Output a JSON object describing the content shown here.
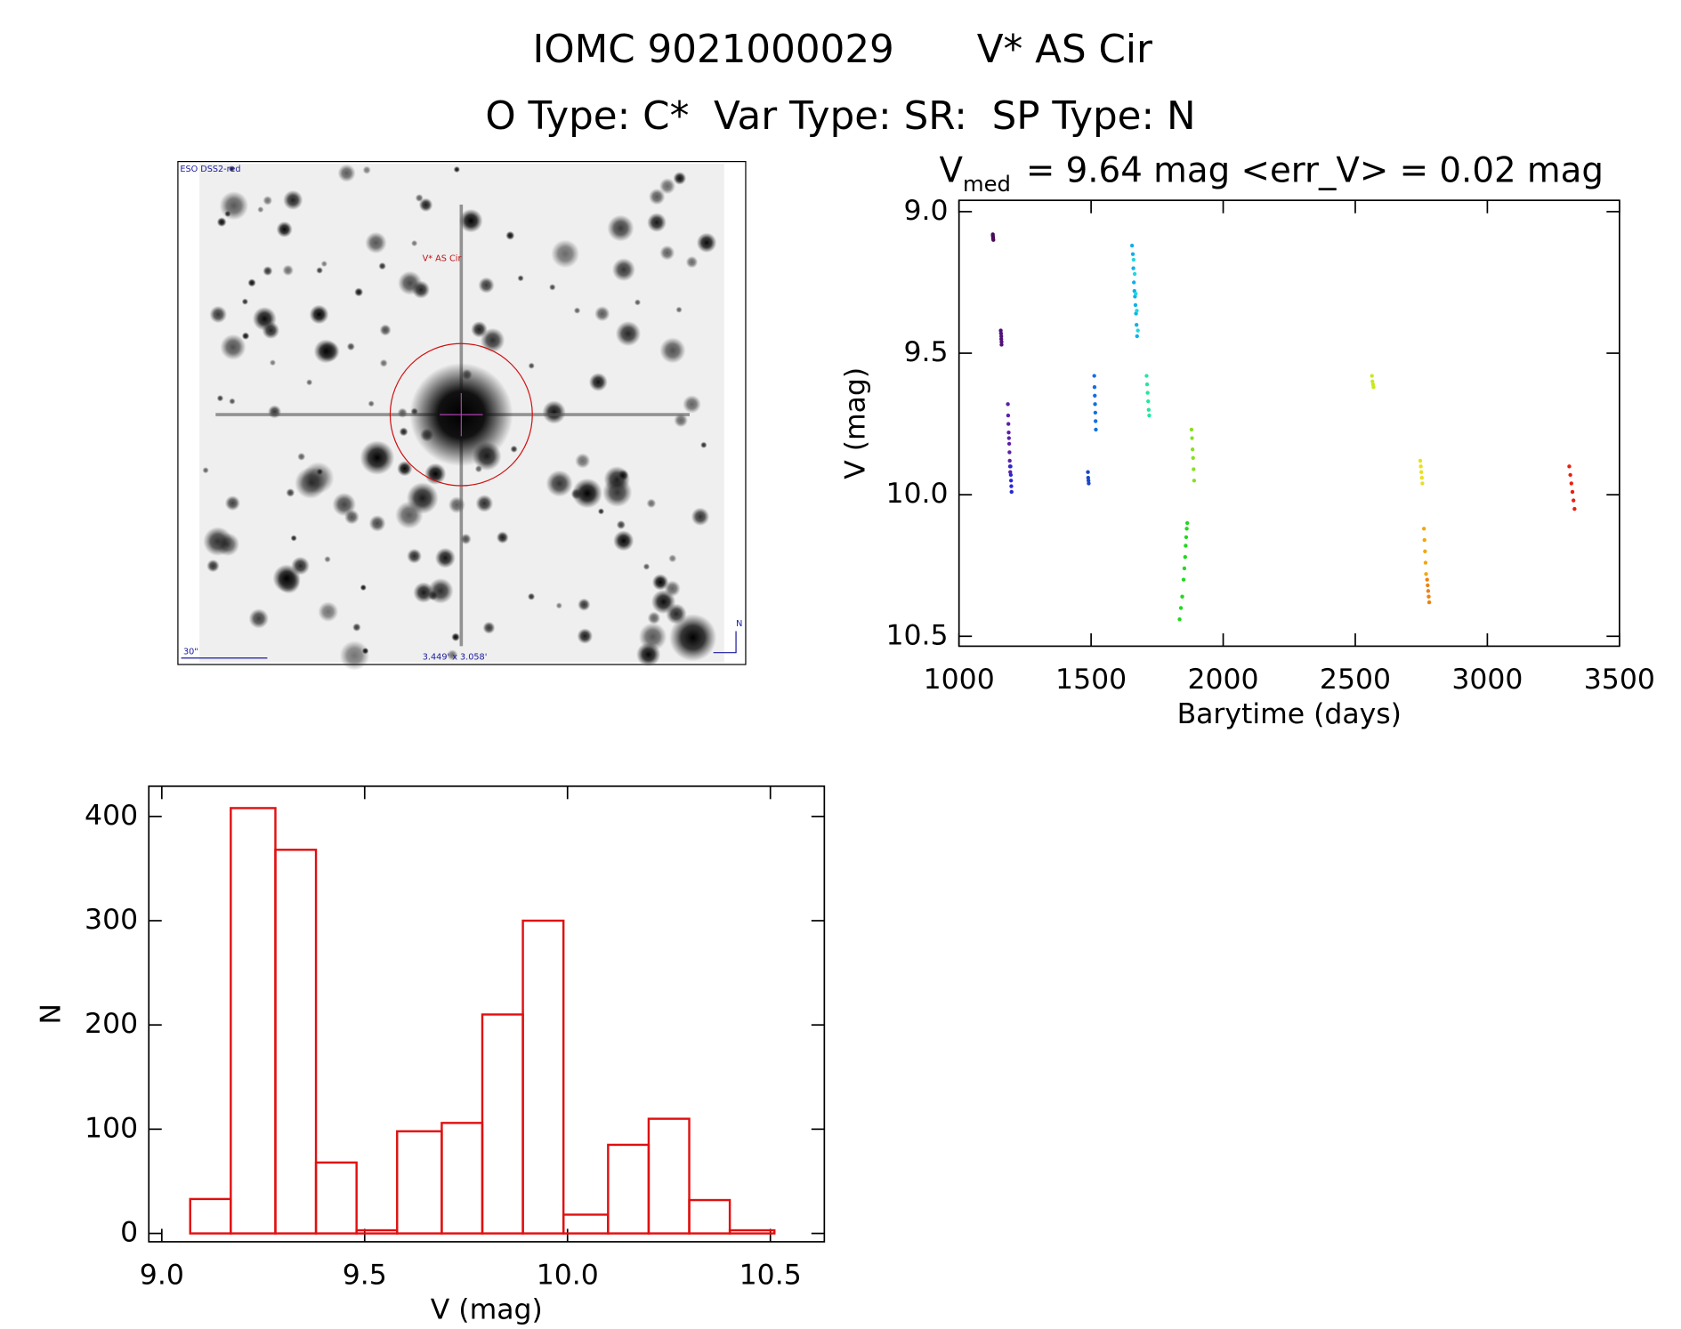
{
  "page_title": "IOMC 9021000029",
  "object_name": "V* AS Cir",
  "type_line": "O Type: C*  Var Type: SR:  SP Type: N",
  "image_panel": {
    "survey": "ESO DSS2-red",
    "target": "V* AS Cir",
    "scale": "30\"",
    "field": "3.449' x 3.058'",
    "north": "N"
  },
  "chart_data": [
    {
      "type": "scatter",
      "title": {
        "main": "V",
        "sub": "med",
        "rest": "= 9.64 mag <err_V> = 0.02 mag"
      },
      "xlabel": "Barytime (days)",
      "ylabel": "V (mag)",
      "xlim": [
        1000,
        3500
      ],
      "xticks": [
        1000,
        1500,
        2000,
        2500,
        3000,
        3500
      ],
      "ylim": [
        8.96,
        10.535
      ],
      "y_inverted": true,
      "yticks": [
        {
          "value": 9,
          "label": "9.0"
        },
        9.5,
        {
          "value": 10,
          "label": "10.0"
        },
        10.5
      ],
      "series": [
        {
          "color": "#4a0a5a",
          "x": [
            1128,
            1128,
            1129,
            1129,
            1130
          ],
          "values": [
            9.08,
            9.085,
            9.09,
            9.095,
            9.1
          ]
        },
        {
          "color": "#50107a",
          "x": [
            1158,
            1159,
            1160,
            1160,
            1161,
            1161
          ],
          "values": [
            9.42,
            9.43,
            9.44,
            9.45,
            9.46,
            9.47
          ]
        },
        {
          "color": "#5a20a8",
          "x": [
            1185,
            1186,
            1187,
            1188,
            1189,
            1190,
            1191,
            1192,
            1193,
            1194
          ],
          "values": [
            9.68,
            9.72,
            9.75,
            9.78,
            9.8,
            9.82,
            9.85,
            9.88,
            9.9,
            9.92
          ]
        },
        {
          "color": "#2828d0",
          "x": [
            1195,
            1196,
            1197,
            1198,
            1199
          ],
          "values": [
            9.9,
            9.93,
            9.95,
            9.97,
            9.99
          ]
        },
        {
          "color": "#1848c8",
          "x": [
            1488,
            1489,
            1490,
            1491
          ],
          "values": [
            9.92,
            9.94,
            9.95,
            9.96
          ]
        },
        {
          "color": "#1070e0",
          "x": [
            1512,
            1513,
            1514,
            1515,
            1516,
            1517,
            1518
          ],
          "values": [
            9.58,
            9.62,
            9.65,
            9.68,
            9.71,
            9.74,
            9.77
          ]
        },
        {
          "color": "#10b0e8",
          "x": [
            1655,
            1658,
            1660,
            1662,
            1664,
            1666,
            1668,
            1670,
            1672,
            1674
          ],
          "values": [
            9.12,
            9.15,
            9.2,
            9.25,
            9.28,
            9.3,
            9.33,
            9.36,
            9.4,
            9.44
          ]
        },
        {
          "color": "#20d8e0",
          "x": [
            1661,
            1665,
            1669,
            1673,
            1677
          ],
          "values": [
            9.17,
            9.22,
            9.29,
            9.35,
            9.42
          ]
        },
        {
          "color": "#20e8a0",
          "x": [
            1710,
            1712,
            1714,
            1716,
            1718,
            1720
          ],
          "values": [
            9.58,
            9.61,
            9.64,
            9.67,
            9.7,
            9.72
          ]
        },
        {
          "color": "#20d820",
          "x": [
            1835,
            1840,
            1845,
            1850,
            1853,
            1856,
            1858,
            1860,
            1862,
            1864
          ],
          "values": [
            10.44,
            10.4,
            10.36,
            10.3,
            10.26,
            10.22,
            10.18,
            10.15,
            10.12,
            10.1
          ]
        },
        {
          "color": "#88e020",
          "x": [
            1880,
            1882,
            1884,
            1886,
            1888,
            1890
          ],
          "values": [
            9.77,
            9.8,
            9.84,
            9.87,
            9.91,
            9.95
          ]
        },
        {
          "color": "#c8e820",
          "x": [
            2563,
            2565,
            2567,
            2569
          ],
          "values": [
            9.58,
            9.6,
            9.61,
            9.62
          ]
        },
        {
          "color": "#e8e020",
          "x": [
            2746,
            2748,
            2750,
            2752,
            2754
          ],
          "values": [
            9.88,
            9.9,
            9.92,
            9.94,
            9.96
          ]
        },
        {
          "color": "#f0a810",
          "x": [
            2760,
            2762,
            2764,
            2766,
            2768
          ],
          "values": [
            10.12,
            10.16,
            10.2,
            10.24,
            10.28
          ]
        },
        {
          "color": "#f08010",
          "x": [
            2772,
            2774,
            2776,
            2778,
            2780
          ],
          "values": [
            10.3,
            10.32,
            10.34,
            10.36,
            10.38
          ]
        },
        {
          "color": "#e82010",
          "x": [
            3310,
            3314,
            3318,
            3322,
            3326,
            3330
          ],
          "values": [
            9.9,
            9.93,
            9.96,
            9.99,
            10.02,
            10.05
          ]
        }
      ]
    },
    {
      "type": "histogram",
      "xlabel": "V (mag)",
      "ylabel": "N",
      "color": "#e01010",
      "bins": [
        9.07,
        9.17,
        9.28,
        9.38,
        9.48,
        9.58,
        9.69,
        9.79,
        9.89,
        9.99,
        10.1,
        10.2,
        10.3,
        10.4,
        10.51
      ],
      "values": [
        33,
        408,
        368,
        68,
        3,
        98,
        106,
        210,
        300,
        18,
        85,
        110,
        32,
        3
      ],
      "xlim": [
        8.968,
        10.633
      ],
      "xticks": [
        {
          "value": 9,
          "label": "9.0"
        },
        9.5,
        {
          "value": 10,
          "label": "10.0"
        },
        10.5
      ],
      "ylim": [
        -8,
        429
      ],
      "yticks": [
        0,
        100,
        200,
        300,
        400
      ]
    }
  ]
}
